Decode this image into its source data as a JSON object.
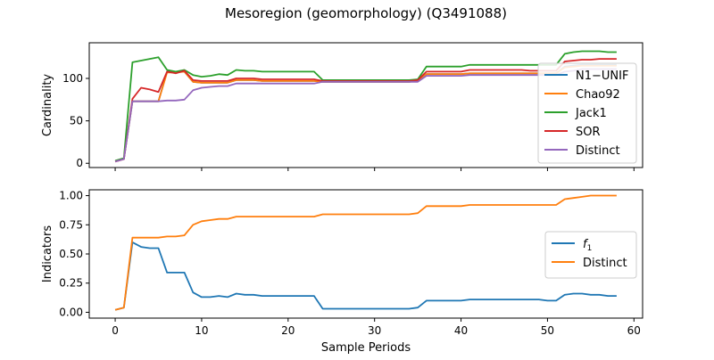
{
  "figure": {
    "title": "Mesoregion (geomorphology) (Q3491088)"
  },
  "chart_data": [
    {
      "type": "line",
      "title": "",
      "xlabel": "",
      "ylabel": "Cardinality",
      "xlim": [
        -3,
        61
      ],
      "ylim": [
        -5,
        142
      ],
      "xticks": [
        0,
        10,
        20,
        30,
        40,
        50,
        60
      ],
      "yticks": [
        0,
        50,
        100
      ],
      "ytick_labels": [
        "0",
        "50",
        "100"
      ],
      "x_tick_labels_visible": false,
      "grid": false,
      "legend": "right",
      "x": [
        0,
        1,
        2,
        3,
        4,
        5,
        6,
        7,
        8,
        9,
        10,
        11,
        12,
        13,
        14,
        15,
        16,
        17,
        18,
        19,
        20,
        21,
        22,
        23,
        24,
        25,
        26,
        27,
        28,
        29,
        30,
        31,
        32,
        33,
        34,
        35,
        36,
        37,
        38,
        39,
        40,
        41,
        42,
        43,
        44,
        45,
        46,
        47,
        48,
        49,
        50,
        51,
        52,
        53,
        54,
        55,
        56,
        57,
        58
      ],
      "series": [
        {
          "name": "N1−UNIF",
          "color": "#1f77b4",
          "values": [
            2,
            5,
            73,
            73,
            73,
            73,
            108,
            108,
            108,
            96,
            95,
            95,
            95,
            95,
            98,
            98,
            98,
            97,
            97,
            97,
            97,
            97,
            97,
            97,
            96,
            96,
            96,
            96,
            96,
            96,
            96,
            96,
            96,
            96,
            96,
            97,
            105,
            105,
            105,
            105,
            105,
            106,
            106,
            106,
            106,
            106,
            106,
            106,
            106,
            106,
            106,
            106,
            114,
            115,
            116,
            116,
            116,
            116,
            116
          ]
        },
        {
          "name": "Chao92",
          "color": "#ff7f0e",
          "values": [
            2,
            5,
            73,
            73,
            73,
            73,
            107,
            107,
            108,
            96,
            95,
            95,
            95,
            95,
            98,
            98,
            98,
            97,
            97,
            97,
            97,
            97,
            97,
            97,
            96,
            96,
            96,
            96,
            96,
            96,
            96,
            96,
            96,
            96,
            96,
            97,
            105,
            105,
            105,
            105,
            105,
            106,
            106,
            106,
            106,
            106,
            106,
            106,
            106,
            106,
            106,
            106,
            113,
            114,
            115,
            115,
            115,
            115,
            115
          ]
        },
        {
          "name": "Jack1",
          "color": "#2ca02c",
          "values": [
            3,
            6,
            119,
            121,
            123,
            125,
            110,
            108,
            110,
            104,
            102,
            103,
            105,
            104,
            110,
            109,
            109,
            108,
            108,
            108,
            108,
            108,
            108,
            108,
            98,
            98,
            98,
            98,
            98,
            98,
            98,
            98,
            98,
            98,
            98,
            99,
            114,
            114,
            114,
            114,
            114,
            116,
            116,
            116,
            116,
            116,
            116,
            116,
            116,
            116,
            116,
            116,
            129,
            131,
            132,
            132,
            132,
            131,
            131
          ]
        },
        {
          "name": "SOR",
          "color": "#d62728",
          "values": [
            2,
            5,
            76,
            89,
            87,
            84,
            108,
            106,
            109,
            98,
            97,
            97,
            97,
            97,
            100,
            100,
            100,
            99,
            99,
            99,
            99,
            99,
            99,
            99,
            97,
            97,
            97,
            97,
            97,
            97,
            97,
            97,
            97,
            97,
            97,
            98,
            108,
            108,
            108,
            108,
            108,
            110,
            110,
            110,
            110,
            110,
            110,
            110,
            109,
            109,
            109,
            109,
            120,
            121,
            122,
            122,
            123,
            123,
            123
          ]
        },
        {
          "name": "Distinct",
          "color": "#9467bd",
          "values": [
            2,
            5,
            73,
            73,
            73,
            73,
            74,
            74,
            75,
            86,
            89,
            90,
            91,
            91,
            94,
            94,
            94,
            94,
            94,
            94,
            94,
            94,
            94,
            94,
            96,
            96,
            96,
            96,
            96,
            96,
            96,
            96,
            96,
            96,
            96,
            96,
            103,
            103,
            103,
            103,
            103,
            104,
            104,
            104,
            104,
            104,
            104,
            104,
            104,
            104,
            104,
            104,
            108,
            109,
            111,
            111,
            111,
            111,
            111
          ]
        }
      ]
    },
    {
      "type": "line",
      "title": "",
      "xlabel": "Sample Periods",
      "ylabel": "Indicators",
      "xlim": [
        -3,
        61
      ],
      "ylim": [
        -0.05,
        1.05
      ],
      "xticks": [
        0,
        10,
        20,
        30,
        40,
        50,
        60
      ],
      "xtick_labels": [
        "0",
        "10",
        "20",
        "30",
        "40",
        "50",
        "60"
      ],
      "yticks": [
        0,
        0.25,
        0.5,
        0.75,
        1.0
      ],
      "ytick_labels": [
        "0.00",
        "0.25",
        "0.50",
        "0.75",
        "1.00"
      ],
      "grid": false,
      "legend": "right",
      "x": [
        0,
        1,
        2,
        3,
        4,
        5,
        6,
        7,
        8,
        9,
        10,
        11,
        12,
        13,
        14,
        15,
        16,
        17,
        18,
        19,
        20,
        21,
        22,
        23,
        24,
        25,
        26,
        27,
        28,
        29,
        30,
        31,
        32,
        33,
        34,
        35,
        36,
        37,
        38,
        39,
        40,
        41,
        42,
        43,
        44,
        45,
        46,
        47,
        48,
        49,
        50,
        51,
        52,
        53,
        54,
        55,
        56,
        57,
        58
      ],
      "series": [
        {
          "name": "f1",
          "display_name": "f",
          "display_sub": "1",
          "color": "#1f77b4",
          "values": [
            0.02,
            0.04,
            0.6,
            0.56,
            0.55,
            0.55,
            0.34,
            0.34,
            0.34,
            0.17,
            0.13,
            0.13,
            0.14,
            0.13,
            0.16,
            0.15,
            0.15,
            0.14,
            0.14,
            0.14,
            0.14,
            0.14,
            0.14,
            0.14,
            0.03,
            0.03,
            0.03,
            0.03,
            0.03,
            0.03,
            0.03,
            0.03,
            0.03,
            0.03,
            0.03,
            0.04,
            0.1,
            0.1,
            0.1,
            0.1,
            0.1,
            0.11,
            0.11,
            0.11,
            0.11,
            0.11,
            0.11,
            0.11,
            0.11,
            0.11,
            0.1,
            0.1,
            0.15,
            0.16,
            0.16,
            0.15,
            0.15,
            0.14,
            0.14
          ]
        },
        {
          "name": "Distinct",
          "color": "#ff7f0e",
          "values": [
            0.02,
            0.04,
            0.64,
            0.64,
            0.64,
            0.64,
            0.65,
            0.65,
            0.66,
            0.75,
            0.78,
            0.79,
            0.8,
            0.8,
            0.82,
            0.82,
            0.82,
            0.82,
            0.82,
            0.82,
            0.82,
            0.82,
            0.82,
            0.82,
            0.84,
            0.84,
            0.84,
            0.84,
            0.84,
            0.84,
            0.84,
            0.84,
            0.84,
            0.84,
            0.84,
            0.85,
            0.91,
            0.91,
            0.91,
            0.91,
            0.91,
            0.92,
            0.92,
            0.92,
            0.92,
            0.92,
            0.92,
            0.92,
            0.92,
            0.92,
            0.92,
            0.92,
            0.97,
            0.98,
            0.99,
            1.0,
            1.0,
            1.0,
            1.0
          ]
        }
      ]
    }
  ]
}
